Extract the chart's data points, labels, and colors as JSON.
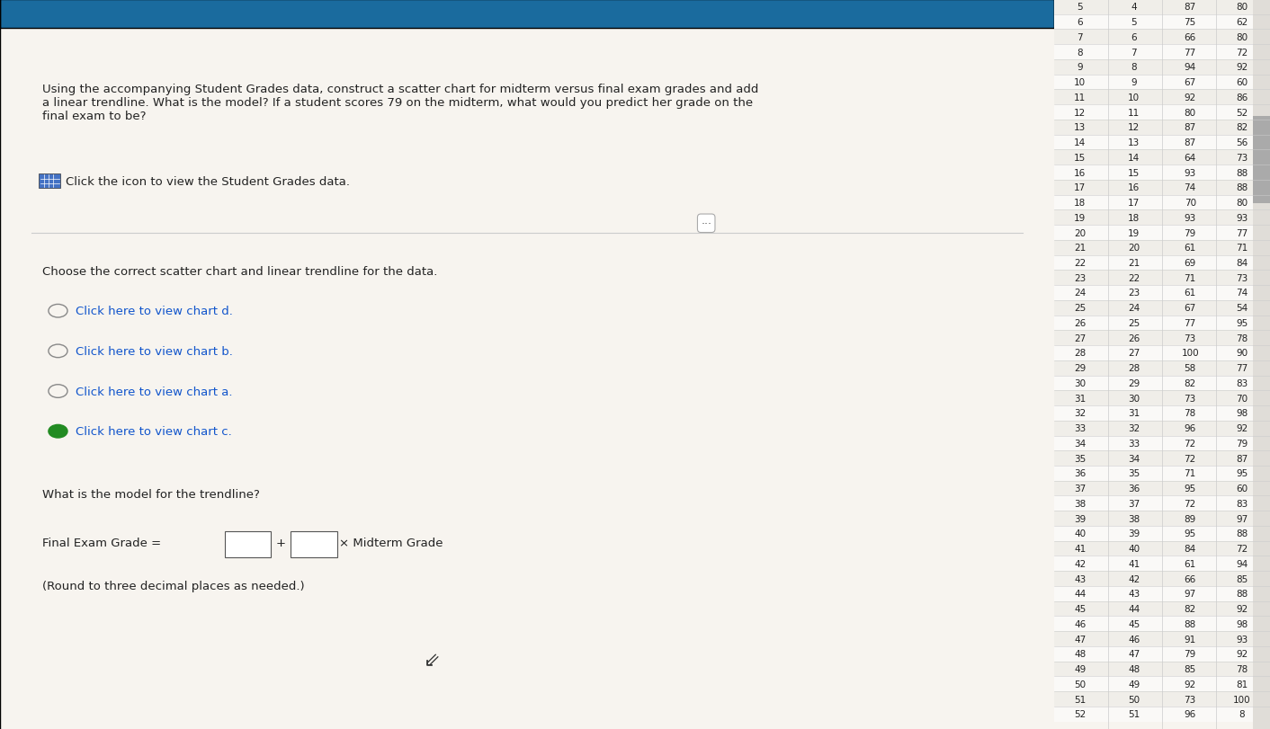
{
  "title_text": "Using the accompanying Student Grades data, construct a scatter chart for midterm versus final exam grades and add\na linear trendline. What is the model? If a student scores 79 on the midterm, what would you predict her grade on the\nfinal exam to be?",
  "icon_text": "Click the icon to view the Student Grades data.",
  "choose_text": "Choose the correct scatter chart and linear trendline for the data.",
  "options": [
    {
      "label": "Click here to view chart d.",
      "selected": false
    },
    {
      "label": "Click here to view chart b.",
      "selected": false
    },
    {
      "label": "Click here to view chart a.",
      "selected": false
    },
    {
      "label": "Click here to view chart c.",
      "selected": true
    }
  ],
  "model_question": "What is the model for the trendline?",
  "model_note": "(Round to three decimal places as needed.)",
  "main_bg": "#f7f4ef",
  "row_numbers": [
    5,
    6,
    7,
    8,
    9,
    10,
    11,
    12,
    13,
    14,
    15,
    16,
    17,
    18,
    19,
    20,
    21,
    22,
    23,
    24,
    25,
    26,
    27,
    28,
    29,
    30,
    31,
    32,
    33,
    34,
    35,
    36,
    37,
    38,
    39,
    40,
    41,
    42,
    43,
    44,
    45,
    46,
    47,
    48,
    49,
    50,
    51,
    52
  ],
  "col2": [
    4,
    5,
    6,
    7,
    8,
    9,
    10,
    11,
    12,
    13,
    14,
    15,
    16,
    17,
    18,
    19,
    20,
    21,
    22,
    23,
    24,
    25,
    26,
    27,
    28,
    29,
    30,
    31,
    32,
    33,
    34,
    35,
    36,
    37,
    38,
    39,
    40,
    41,
    42,
    43,
    44,
    45,
    46,
    47,
    48,
    49,
    50,
    51
  ],
  "midterm": [
    87,
    75,
    66,
    77,
    94,
    67,
    92,
    80,
    87,
    87,
    64,
    93,
    74,
    70,
    93,
    79,
    61,
    69,
    71,
    61,
    67,
    77,
    73,
    100,
    58,
    82,
    73,
    78,
    96,
    72,
    72,
    71,
    95,
    72,
    89,
    95,
    84,
    61,
    66,
    97,
    82,
    88,
    91,
    79,
    85,
    92,
    73,
    96
  ],
  "final": [
    80,
    62,
    80,
    72,
    92,
    60,
    86,
    52,
    82,
    56,
    73,
    88,
    88,
    80,
    93,
    77,
    71,
    84,
    73,
    74,
    54,
    95,
    78,
    90,
    77,
    83,
    70,
    98,
    92,
    79,
    87,
    95,
    60,
    83,
    97,
    88,
    72,
    94,
    85,
    88,
    92,
    98,
    93,
    92,
    78,
    81,
    100,
    8
  ],
  "table_bg": "#faf9f7",
  "table_line_color": "#cccccc",
  "link_color": "#1155cc",
  "text_color": "#222222",
  "selected_icon_color": "#228B22",
  "top_bar_color": "#1a6b9e"
}
